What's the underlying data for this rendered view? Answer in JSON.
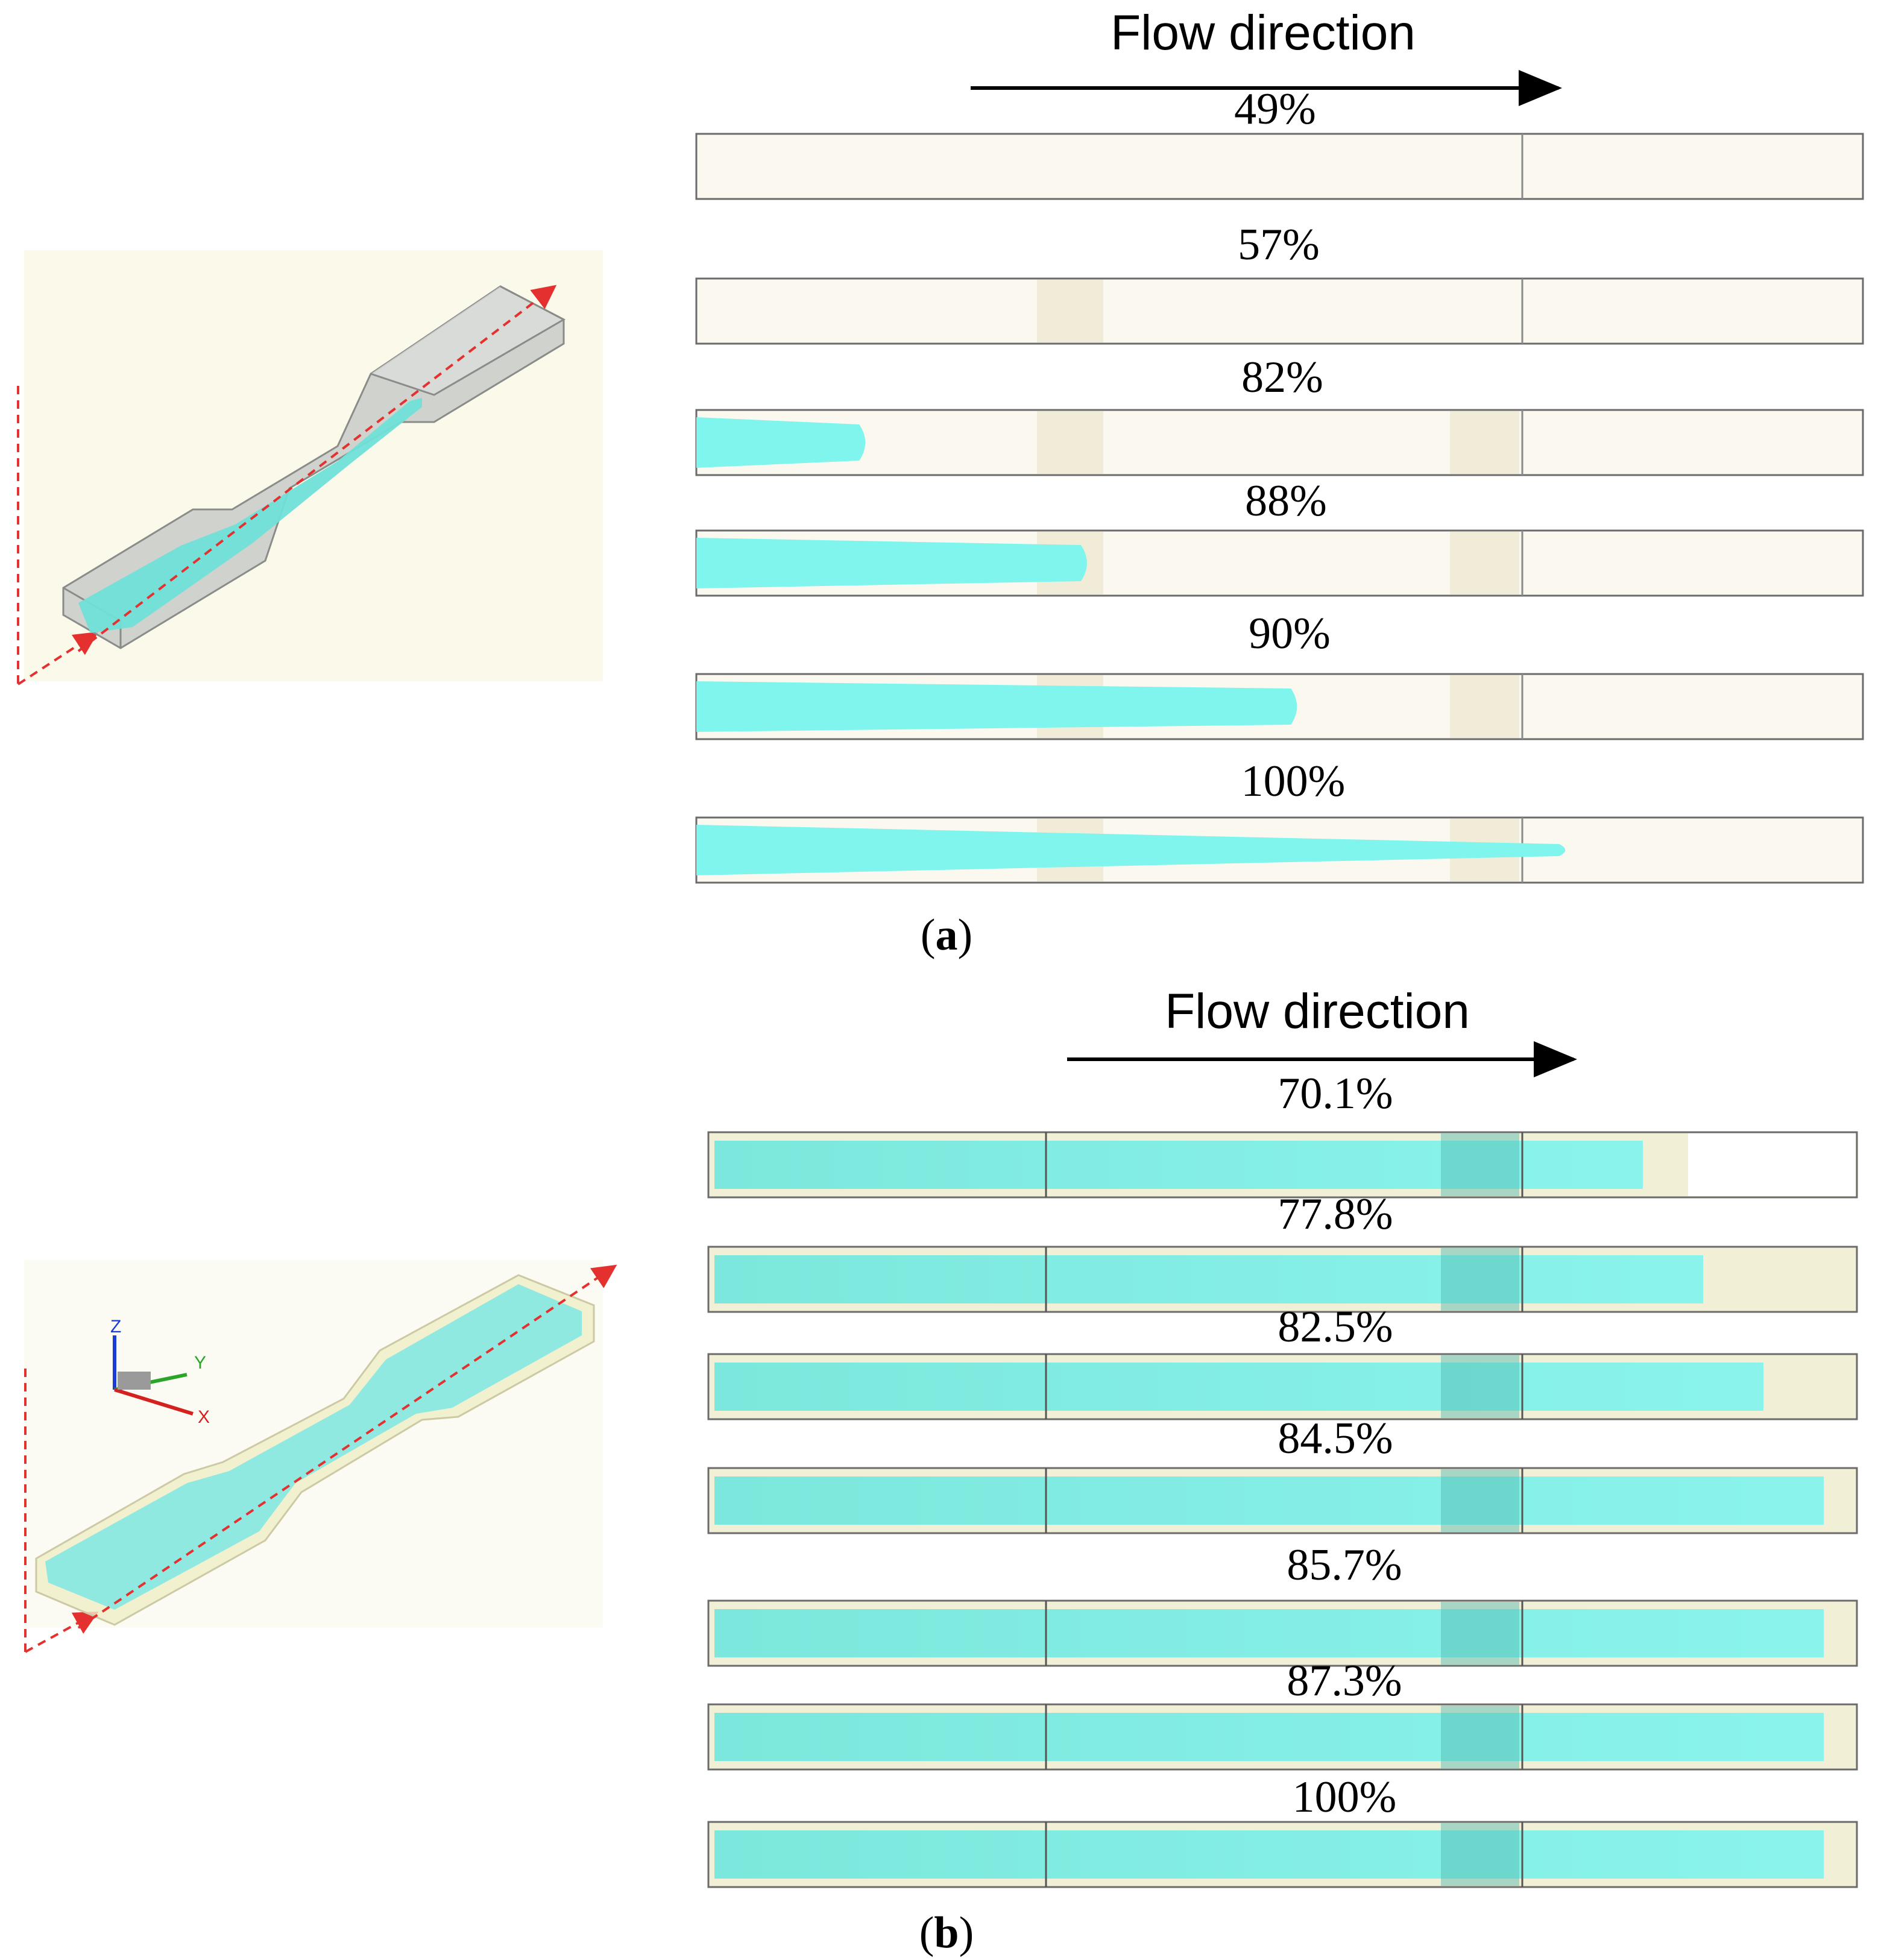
{
  "panel_a": {
    "flow_direction_label": "Flow direction",
    "label_open": "(",
    "label_letter": "a",
    "label_close": ")",
    "fill_percentages": [
      "49%",
      "57%",
      "82%",
      "88%",
      "90%",
      "100%"
    ],
    "fill_fraction_of_strip": [
      0.0,
      0.0,
      0.15,
      0.34,
      0.52,
      0.75
    ]
  },
  "panel_b": {
    "flow_direction_label": "Flow direction",
    "label_open": "(",
    "label_letter": "b",
    "label_close": ")",
    "fill_percentages": [
      "70.1%",
      "77.8%",
      "82.5%",
      "84.5%",
      "85.7%",
      "87.3%",
      "100%"
    ],
    "axis_triad": {
      "z": "Z",
      "y": "Y",
      "x": "X"
    }
  },
  "colors": {
    "melt_cyan": "#7ff5ee",
    "mold_cream": "#fbf9ef",
    "gauge_tint": "#efe8d2",
    "arrow_red": "#e53030",
    "part_gray": "#c9ccc9"
  }
}
